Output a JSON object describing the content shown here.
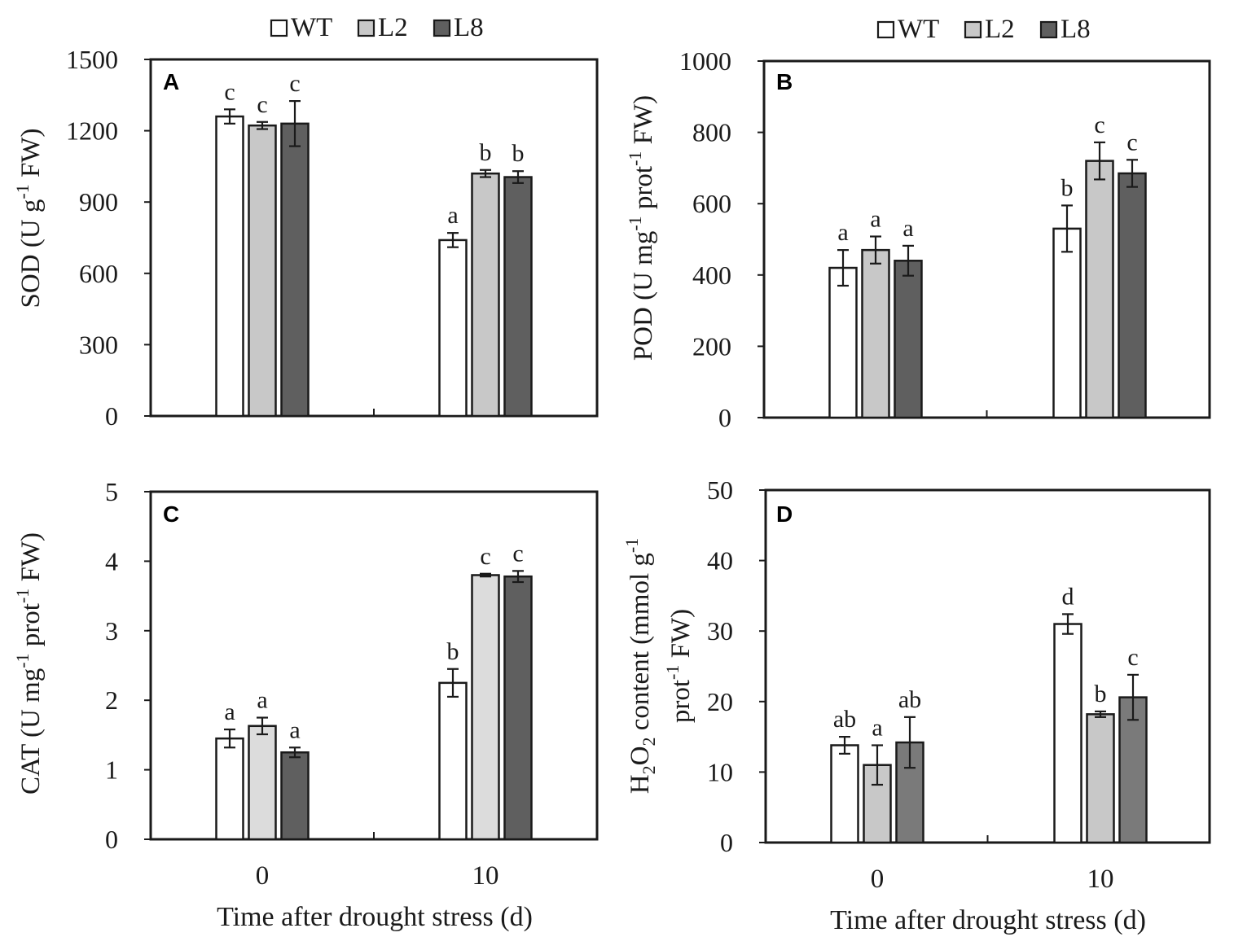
{
  "legend": {
    "entries": [
      {
        "label": "WT",
        "color": "#ffffff"
      },
      {
        "label": "L2",
        "color": "#c8c8c8"
      },
      {
        "label": "L8",
        "color": "#5f5f5f"
      }
    ]
  },
  "xlabel": "Time after drought stress (d)",
  "colors": {
    "WT": "#ffffff",
    "L2": "#c8c8c8",
    "L8": "#5f5f5f",
    "L2_C": "#dcdcdc",
    "L8_D": "#7a7a7a",
    "stroke": "#1a1a1a"
  },
  "chart_data": [
    {
      "panel": "A",
      "type": "bar",
      "ylabel_main": "SOD (U g",
      "ylabel_sup": "-1",
      "ylabel_tail": " FW)",
      "ylim": [
        0,
        1500
      ],
      "yticks": [
        "0",
        "300",
        "600",
        "900",
        "1200",
        "1500"
      ],
      "categories": [
        "0",
        "10"
      ],
      "series": [
        {
          "name": "WT",
          "values": [
            1260,
            740
          ],
          "errors": [
            30,
            30
          ],
          "letters": [
            "c",
            "a"
          ]
        },
        {
          "name": "L2",
          "values": [
            1222,
            1020
          ],
          "errors": [
            15,
            15
          ],
          "letters": [
            "c",
            "b"
          ]
        },
        {
          "name": "L8",
          "values": [
            1230,
            1005
          ],
          "errors": [
            95,
            25
          ],
          "letters": [
            "c",
            "b"
          ]
        }
      ]
    },
    {
      "panel": "B",
      "type": "bar",
      "ylabel_main": "POD (U mg",
      "ylabel_sup": "-1",
      "ylabel_mid": " prot",
      "ylabel_sup2": "-1",
      "ylabel_tail": " FW)",
      "ylim": [
        0,
        1000
      ],
      "yticks": [
        "0",
        "200",
        "400",
        "600",
        "800",
        "1000"
      ],
      "categories": [
        "0",
        "10"
      ],
      "series": [
        {
          "name": "WT",
          "values": [
            420,
            530
          ],
          "errors": [
            50,
            65
          ],
          "letters": [
            "a",
            "b"
          ]
        },
        {
          "name": "L2",
          "values": [
            470,
            720
          ],
          "errors": [
            38,
            52
          ],
          "letters": [
            "a",
            "c"
          ]
        },
        {
          "name": "L8",
          "values": [
            440,
            685
          ],
          "errors": [
            42,
            38
          ],
          "letters": [
            "a",
            "c"
          ]
        }
      ]
    },
    {
      "panel": "C",
      "type": "bar",
      "ylabel_main": "CAT (U mg",
      "ylabel_sup": "-1",
      "ylabel_mid": " prot",
      "ylabel_sup2": "-1",
      "ylabel_tail": " FW)",
      "ylim": [
        0,
        5
      ],
      "yticks": [
        "0",
        "1",
        "2",
        "3",
        "4",
        "5"
      ],
      "categories": [
        "0",
        "10"
      ],
      "series": [
        {
          "name": "WT",
          "values": [
            1.45,
            2.25
          ],
          "errors": [
            0.13,
            0.2
          ],
          "letters": [
            "a",
            "b"
          ]
        },
        {
          "name": "L2",
          "values": [
            1.63,
            3.8
          ],
          "errors": [
            0.12,
            0.02
          ],
          "letters": [
            "a",
            "c"
          ]
        },
        {
          "name": "L8",
          "values": [
            1.25,
            3.78
          ],
          "errors": [
            0.07,
            0.08
          ],
          "letters": [
            "a",
            "c"
          ]
        }
      ]
    },
    {
      "panel": "D",
      "type": "bar",
      "ylabel_line1": "H2O2 content (mmol g-1",
      "ylabel_line2": "prot-1 FW)",
      "ylabel_H": "H",
      "ylabel_sub1": "2",
      "ylabel_O": "O",
      "ylabel_sub2": "2",
      "ylabel_rest1": " content (mmol g",
      "ylabel_sup": "-1",
      "ylabel_l2a": "prot",
      "ylabel_l2sup": "-1",
      "ylabel_l2b": " FW)",
      "ylim": [
        0,
        50
      ],
      "yticks": [
        "0",
        "10",
        "20",
        "30",
        "40",
        "50"
      ],
      "categories": [
        "0",
        "10"
      ],
      "series": [
        {
          "name": "WT",
          "values": [
            13.8,
            31
          ],
          "errors": [
            1.2,
            1.4
          ],
          "letters": [
            "ab",
            "d"
          ]
        },
        {
          "name": "L2",
          "values": [
            11,
            18.2
          ],
          "errors": [
            2.8,
            0.4
          ],
          "letters": [
            "a",
            "b"
          ]
        },
        {
          "name": "L8",
          "values": [
            14.2,
            20.6
          ],
          "errors": [
            3.6,
            3.2
          ],
          "letters": [
            "ab",
            "c"
          ]
        }
      ]
    }
  ]
}
